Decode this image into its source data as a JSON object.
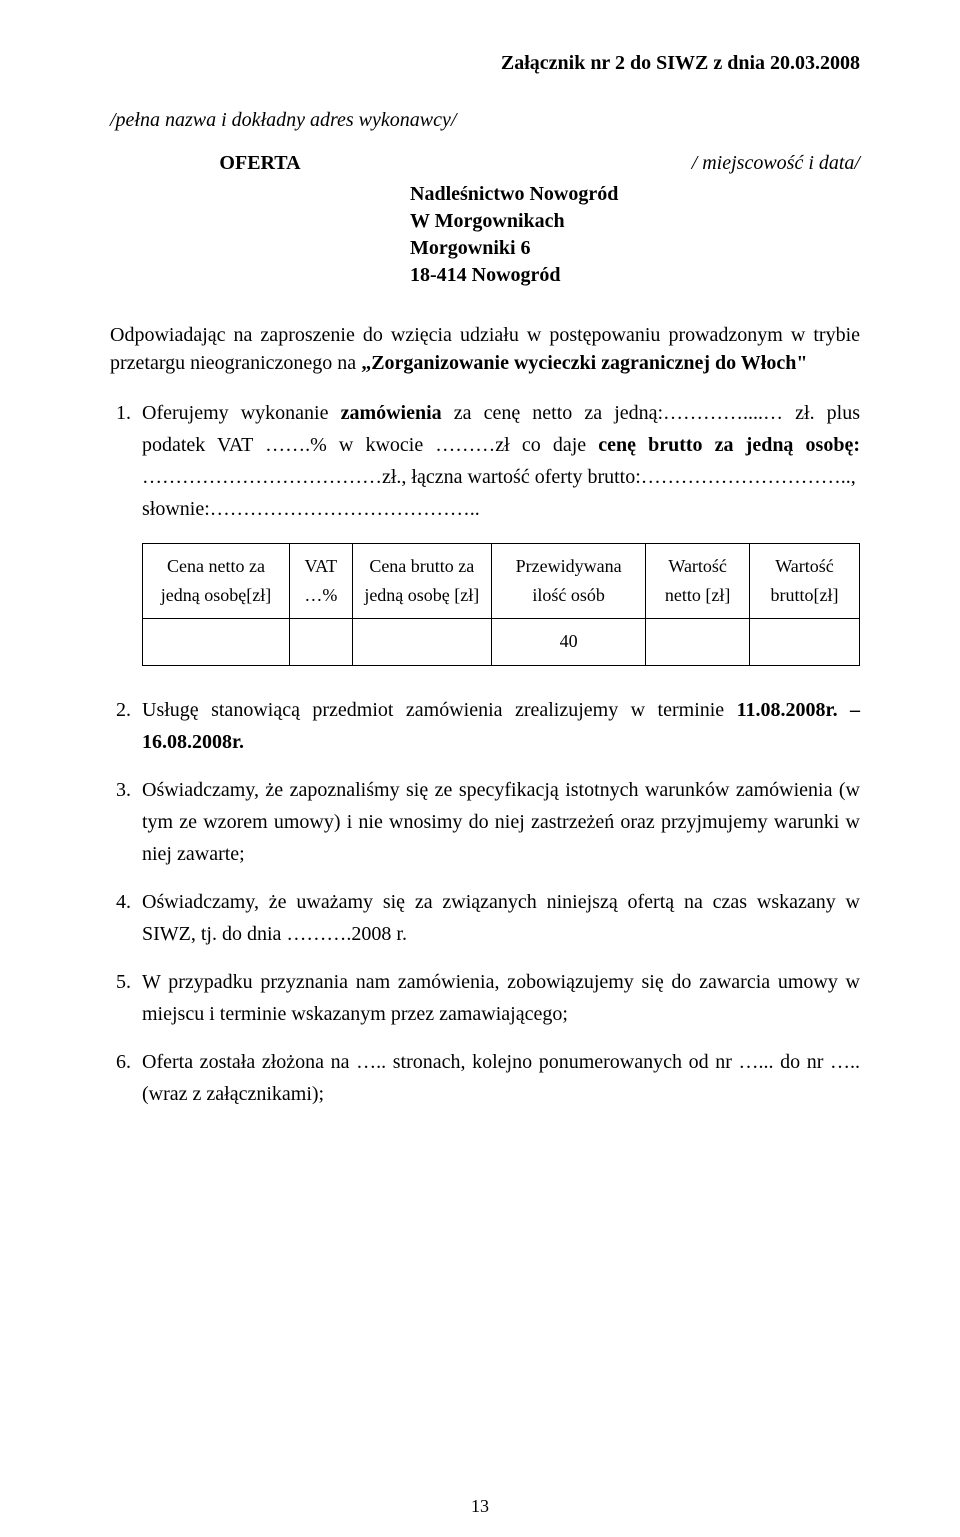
{
  "header": "Załącznik nr 2 do SIWZ z dnia 20.03.2008",
  "sender_line": "/pełna nazwa i dokładny adres wykonawcy/",
  "offer_label": "OFERTA",
  "place_date": "/ miejscowość i data/",
  "recipient": {
    "line1": "Nadleśnictwo Nowogród",
    "line2": "W Morgownikach",
    "line3": "Morgowniki 6",
    "line4": "18-414 Nowogród"
  },
  "intro": {
    "prefix": "Odpowiadając na zaproszenie do wzięcia udziału w postępowaniu prowadzonym w trybie przetargu nieograniczonego na ",
    "bold": "„Zorganizowanie wycieczki zagranicznej do Włoch\""
  },
  "item1": {
    "p1a": "Oferujemy wykonanie ",
    "p1b": "zamówienia",
    "p1c": " za cenę netto za jedną:…………....… zł. plus podatek VAT …….% w kwocie ………zł co daje ",
    "p1d": "cenę brutto za jedną osobę: ",
    "p1e": "………………………………zł., łączna wartość oferty brutto:…………………………..,",
    "p2": "słownie:………………………………….."
  },
  "table": {
    "h1": "Cena netto za jedną osobę[zł]",
    "h2": "VAT …%",
    "h3": "Cena brutto za jedną osobę [zł]",
    "h4": "Przewidywana ilość osób",
    "h5": "Wartość netto [zł]",
    "h6": "Wartość brutto[zł]",
    "qty": "40"
  },
  "item2": {
    "a": "Usługę stanowiącą przedmiot zamówienia zrealizujemy w terminie ",
    "b": "11.08.2008r. – 16.08.2008r."
  },
  "item3": "Oświadczamy, że zapoznaliśmy się ze specyfikacją istotnych warunków zamówienia (w tym ze wzorem umowy) i nie wnosimy do niej zastrzeżeń oraz przyjmujemy warunki w niej zawarte;",
  "item4": "Oświadczamy, że uważamy się za związanych niniejszą ofertą na czas wskazany w SIWZ, tj. do dnia ……….2008 r.",
  "item5": "W przypadku przyznania nam zamówienia, zobowiązujemy się do zawarcia umowy w miejscu i terminie wskazanym przez zamawiającego;",
  "item6": "Oferta została złożona na ….. stronach,  kolejno ponumerowanych od nr …... do nr ….. (wraz z załącznikami);",
  "page_number": "13"
}
